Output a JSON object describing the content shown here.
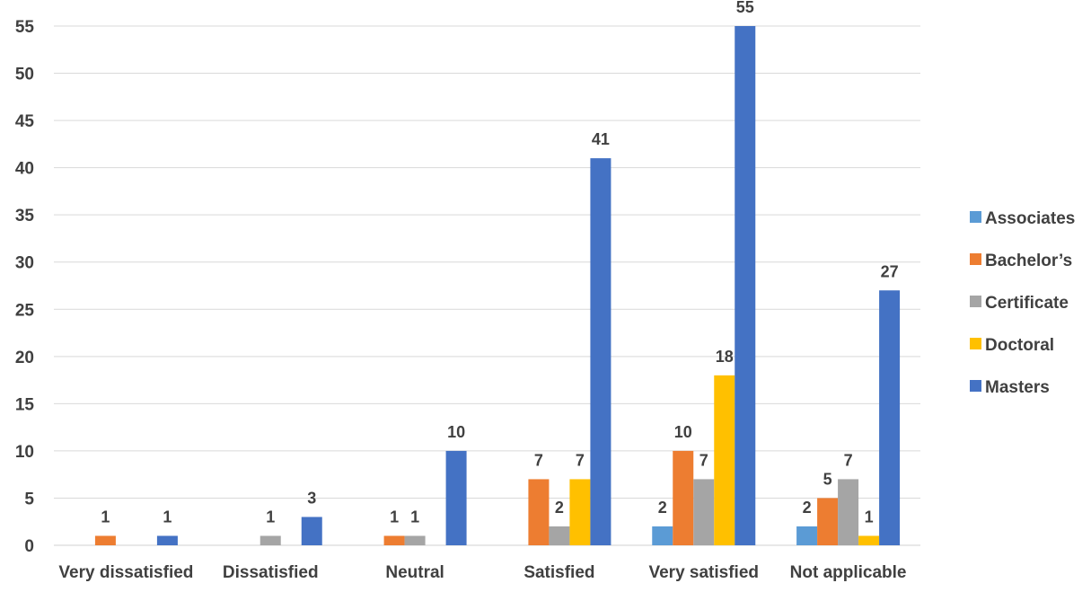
{
  "chart_data": {
    "type": "bar",
    "categories": [
      "Very dissatisfied",
      "Dissatisfied",
      "Neutral",
      "Satisfied",
      "Very satisfied",
      "Not applicable"
    ],
    "series": [
      {
        "name": "Associates",
        "color": "#5B9BD5",
        "values": [
          null,
          null,
          null,
          null,
          2,
          2
        ]
      },
      {
        "name": "Bachelor’s",
        "color": "#ED7D31",
        "values": [
          1,
          null,
          1,
          7,
          10,
          5
        ]
      },
      {
        "name": "Certificate",
        "color": "#A5A5A5",
        "values": [
          null,
          1,
          1,
          2,
          7,
          7
        ]
      },
      {
        "name": "Doctoral",
        "color": "#FFC000",
        "values": [
          null,
          null,
          null,
          7,
          18,
          1
        ]
      },
      {
        "name": "Masters",
        "color": "#4472C4",
        "values": [
          1,
          3,
          10,
          41,
          55,
          27
        ]
      }
    ],
    "ylim": [
      0,
      55
    ],
    "yticks": [
      0,
      5,
      10,
      15,
      20,
      25,
      30,
      35,
      40,
      45,
      50,
      55
    ],
    "grid": true,
    "legend_position": "right"
  }
}
